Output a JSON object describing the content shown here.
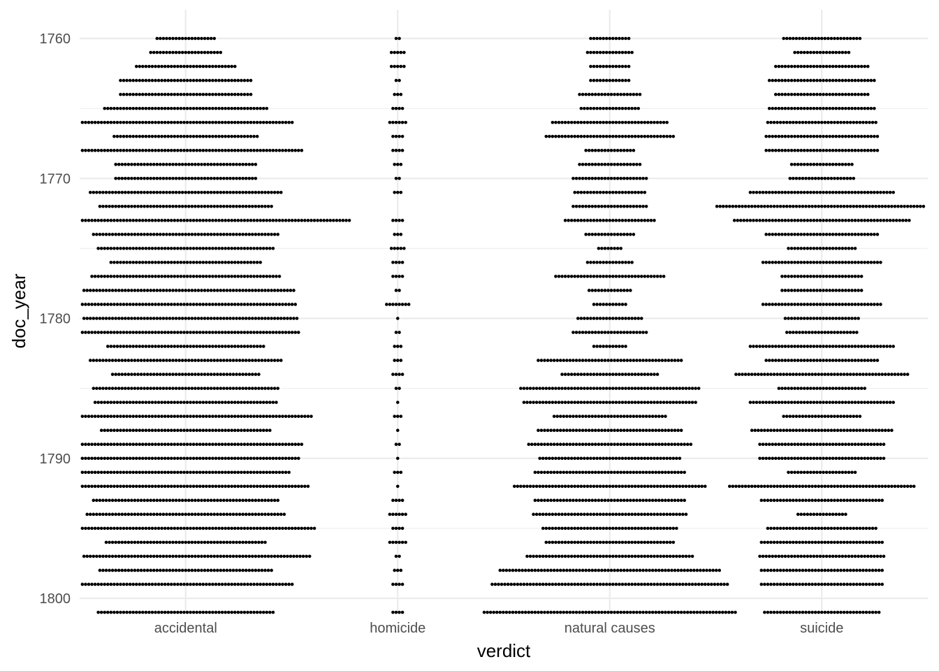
{
  "chart_data": {
    "type": "dotplot",
    "title": "",
    "xlabel": "verdict",
    "ylabel": "doc_year",
    "categories": [
      "accidental",
      "homicide",
      "natural causes",
      "suicide"
    ],
    "y_ticks": [
      1760,
      1770,
      1780,
      1790,
      1800
    ],
    "ylim": [
      1759,
      1801
    ],
    "y_reversed": true,
    "grid": true,
    "legend": "none",
    "years": [
      1760,
      1761,
      1762,
      1763,
      1764,
      1765,
      1766,
      1767,
      1768,
      1769,
      1770,
      1771,
      1772,
      1773,
      1774,
      1775,
      1776,
      1777,
      1778,
      1779,
      1780,
      1781,
      1782,
      1783,
      1784,
      1785,
      1786,
      1787,
      1788,
      1789,
      1790,
      1791,
      1792,
      1793,
      1794,
      1795,
      1796,
      1797,
      1798,
      1799,
      1800,
      1801
    ],
    "series": [
      {
        "category": "accidental",
        "counts": [
          19,
          23,
          32,
          42,
          42,
          52,
          68,
          46,
          74,
          45,
          45,
          61,
          55,
          104,
          59,
          56,
          48,
          60,
          69,
          70,
          71,
          72,
          50,
          61,
          47,
          59,
          58,
          80,
          54,
          74,
          72,
          66,
          78,
          59,
          63,
          82,
          51,
          79,
          55,
          68,
          0,
          56
        ]
      },
      {
        "category": "homicide",
        "counts": [
          2,
          5,
          5,
          2,
          3,
          4,
          6,
          4,
          4,
          3,
          2,
          3,
          0,
          4,
          3,
          5,
          4,
          4,
          2,
          8,
          1,
          2,
          3,
          3,
          4,
          2,
          1,
          3,
          1,
          2,
          1,
          3,
          1,
          4,
          6,
          4,
          6,
          2,
          3,
          4,
          0,
          4
        ]
      },
      {
        "category": "natural causes",
        "counts": [
          13,
          15,
          13,
          13,
          20,
          19,
          37,
          41,
          16,
          20,
          24,
          23,
          24,
          29,
          16,
          8,
          15,
          35,
          14,
          11,
          21,
          24,
          11,
          46,
          31,
          57,
          55,
          36,
          46,
          52,
          45,
          48,
          61,
          48,
          49,
          43,
          41,
          53,
          70,
          75,
          0,
          80
        ]
      },
      {
        "category": "suicide",
        "counts": [
          25,
          18,
          30,
          34,
          30,
          34,
          35,
          36,
          36,
          20,
          21,
          46,
          67,
          56,
          36,
          22,
          38,
          26,
          26,
          38,
          24,
          23,
          46,
          36,
          55,
          28,
          46,
          25,
          45,
          40,
          40,
          22,
          59,
          39,
          16,
          35,
          39,
          40,
          39,
          39,
          0,
          37
        ]
      }
    ]
  }
}
